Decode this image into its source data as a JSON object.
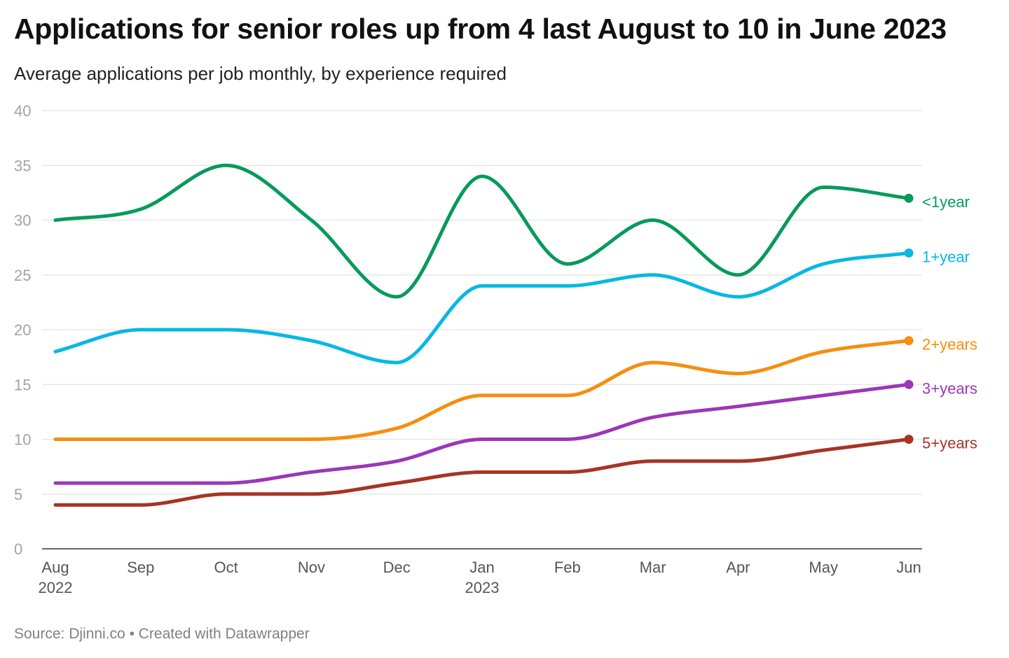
{
  "title": "Applications for senior roles up from 4 last August to 10 in June 2023",
  "subtitle": "Average applications per job monthly, by experience required",
  "footer": "Source: Djinni.co • Created with Datawrapper",
  "chart_data": {
    "type": "line",
    "title": "Applications for senior roles up from 4 last August to 10 in June 2023",
    "subtitle": "Average applications per job monthly, by experience required",
    "xlabel": "",
    "ylabel": "",
    "categories": [
      "Aug",
      "Sep",
      "Oct",
      "Nov",
      "Dec",
      "Jan",
      "Feb",
      "Mar",
      "Apr",
      "May",
      "Jun"
    ],
    "year_labels": [
      "2022",
      "",
      "",
      "",
      "",
      "2023",
      "",
      "",
      "",
      "",
      ""
    ],
    "ylim": [
      0,
      40
    ],
    "yticks": [
      0,
      5,
      10,
      15,
      20,
      25,
      30,
      35,
      40
    ],
    "grid": true,
    "legend": "direct-labels-right",
    "series": [
      {
        "name": "<1year",
        "color": "#079a5b",
        "values": [
          30,
          31,
          35,
          30,
          23,
          34,
          26,
          30,
          25,
          33,
          32
        ]
      },
      {
        "name": "1+year",
        "color": "#08b8e3",
        "values": [
          18,
          20,
          20,
          19,
          17,
          24,
          24,
          25,
          23,
          26,
          27
        ]
      },
      {
        "name": "2+years",
        "color": "#f68e0f",
        "values": [
          10,
          10,
          10,
          10,
          11,
          14,
          14,
          17,
          16,
          18,
          19
        ]
      },
      {
        "name": "3+years",
        "color": "#9b37b6",
        "values": [
          6,
          6,
          6,
          7,
          8,
          10,
          10,
          12,
          13,
          14,
          15
        ]
      },
      {
        "name": "5+years",
        "color": "#a73325",
        "values": [
          4,
          4,
          5,
          5,
          6,
          7,
          7,
          8,
          8,
          9,
          10
        ]
      }
    ]
  }
}
